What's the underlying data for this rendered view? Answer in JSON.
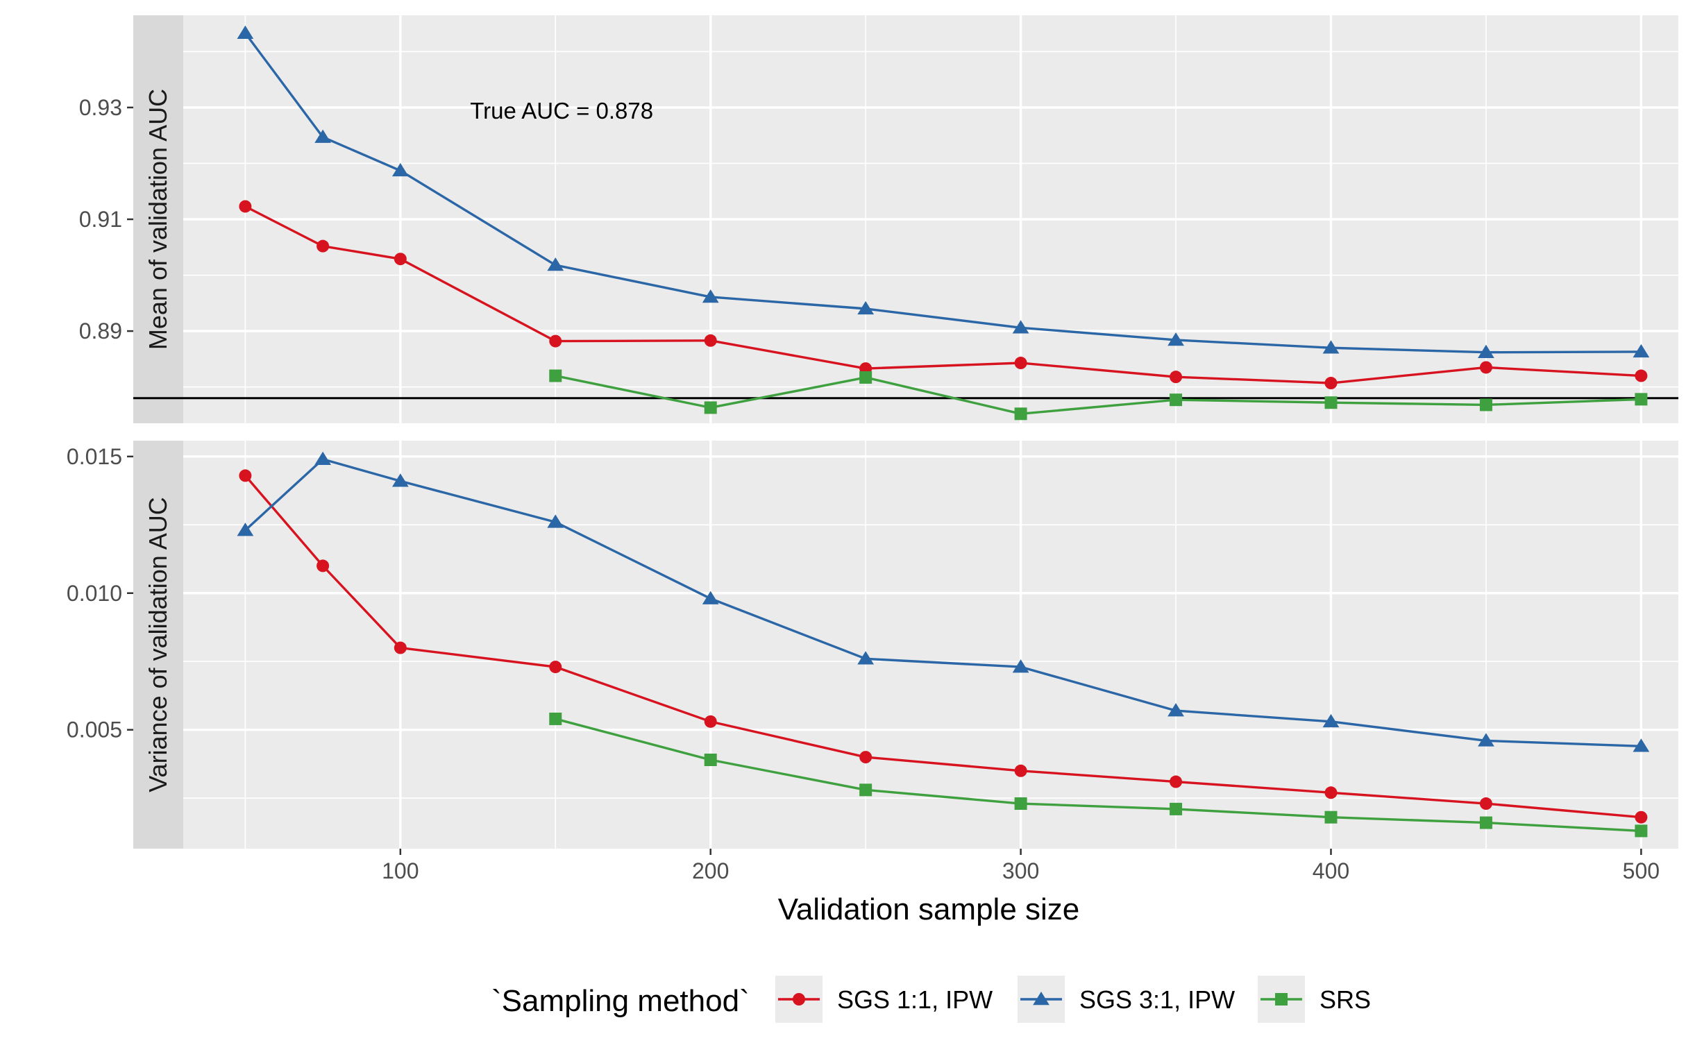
{
  "chart_data": {
    "type": "line",
    "x": [
      50,
      75,
      100,
      150,
      200,
      250,
      300,
      350,
      400,
      450,
      500
    ],
    "xlabel": "Validation sample size",
    "xlim": [
      30,
      512
    ],
    "xticks": [
      100,
      200,
      300,
      400,
      500
    ],
    "xtick_labels": [
      "100",
      "200",
      "300",
      "400",
      "500"
    ],
    "legend": {
      "title": "`Sampling method`",
      "position": "bottom"
    },
    "series_styles": [
      {
        "name": "SGS 1:1, IPW",
        "color": "#d7131f",
        "marker": "circle"
      },
      {
        "name": "SGS 3:1, IPW",
        "color": "#2b66a6",
        "marker": "triangle"
      },
      {
        "name": "SRS",
        "color": "#3ea03e",
        "marker": "square"
      }
    ],
    "panels": [
      {
        "id": "mean",
        "strip_label": "Mean of validation AUC",
        "ylim": [
          0.8735,
          0.9465
        ],
        "yticks": [
          0.89,
          0.91,
          0.93
        ],
        "ytick_labels": [
          "0.89",
          "0.91",
          "0.93"
        ],
        "yminor": [
          0.88,
          0.9,
          0.92,
          0.94
        ],
        "reference_line": {
          "y": 0.878
        },
        "annotation": {
          "text": "True AUC = 0.878",
          "x": 118,
          "y": 0.928
        },
        "series": [
          {
            "name": "SGS 1:1, IPW",
            "x": [
              50,
              75,
              100,
              150,
              200,
              250,
              300,
              350,
              400,
              450,
              500
            ],
            "values": [
              0.9123,
              0.9052,
              0.9029,
              0.8882,
              0.8883,
              0.8833,
              0.8843,
              0.8818,
              0.8807,
              0.8835,
              0.882
            ]
          },
          {
            "name": "SGS 3:1, IPW",
            "x": [
              50,
              75,
              100,
              150,
              200,
              250,
              300,
              350,
              400,
              450,
              500
            ],
            "values": [
              0.9433,
              0.9247,
              0.9187,
              0.9018,
              0.8961,
              0.894,
              0.8906,
              0.8884,
              0.887,
              0.8862,
              0.8863
            ]
          },
          {
            "name": "SRS",
            "x": [
              150,
              200,
              250,
              300,
              350,
              400,
              450,
              500
            ],
            "values": [
              0.882,
              0.8763,
              0.8817,
              0.8752,
              0.8777,
              0.8772,
              0.8768,
              0.8778
            ]
          }
        ]
      },
      {
        "id": "variance",
        "strip_label": "Variance of validation AUC",
        "ylim": [
          0.00065,
          0.01558
        ],
        "yticks": [
          0.005,
          0.01,
          0.015
        ],
        "ytick_labels": [
          "0.005",
          "0.010",
          "0.015"
        ],
        "yminor": [
          0.0025,
          0.0075,
          0.0125
        ],
        "series": [
          {
            "name": "SGS 1:1, IPW",
            "x": [
              50,
              75,
              100,
              150,
              200,
              250,
              300,
              350,
              400,
              450,
              500
            ],
            "values": [
              0.0143,
              0.011,
              0.008,
              0.0073,
              0.0053,
              0.004,
              0.0035,
              0.0031,
              0.0027,
              0.0023,
              0.0018
            ]
          },
          {
            "name": "SGS 3:1, IPW",
            "x": [
              50,
              75,
              100,
              150,
              200,
              250,
              300,
              350,
              400,
              450,
              500
            ],
            "values": [
              0.0123,
              0.0149,
              0.0141,
              0.0126,
              0.0098,
              0.0076,
              0.0073,
              0.0057,
              0.0053,
              0.0046,
              0.0044
            ]
          },
          {
            "name": "SRS",
            "x": [
              150,
              200,
              250,
              300,
              350,
              400,
              450,
              500
            ],
            "values": [
              0.0054,
              0.0039,
              0.0028,
              0.0023,
              0.0021,
              0.0018,
              0.0016,
              0.0013
            ]
          }
        ]
      }
    ]
  }
}
